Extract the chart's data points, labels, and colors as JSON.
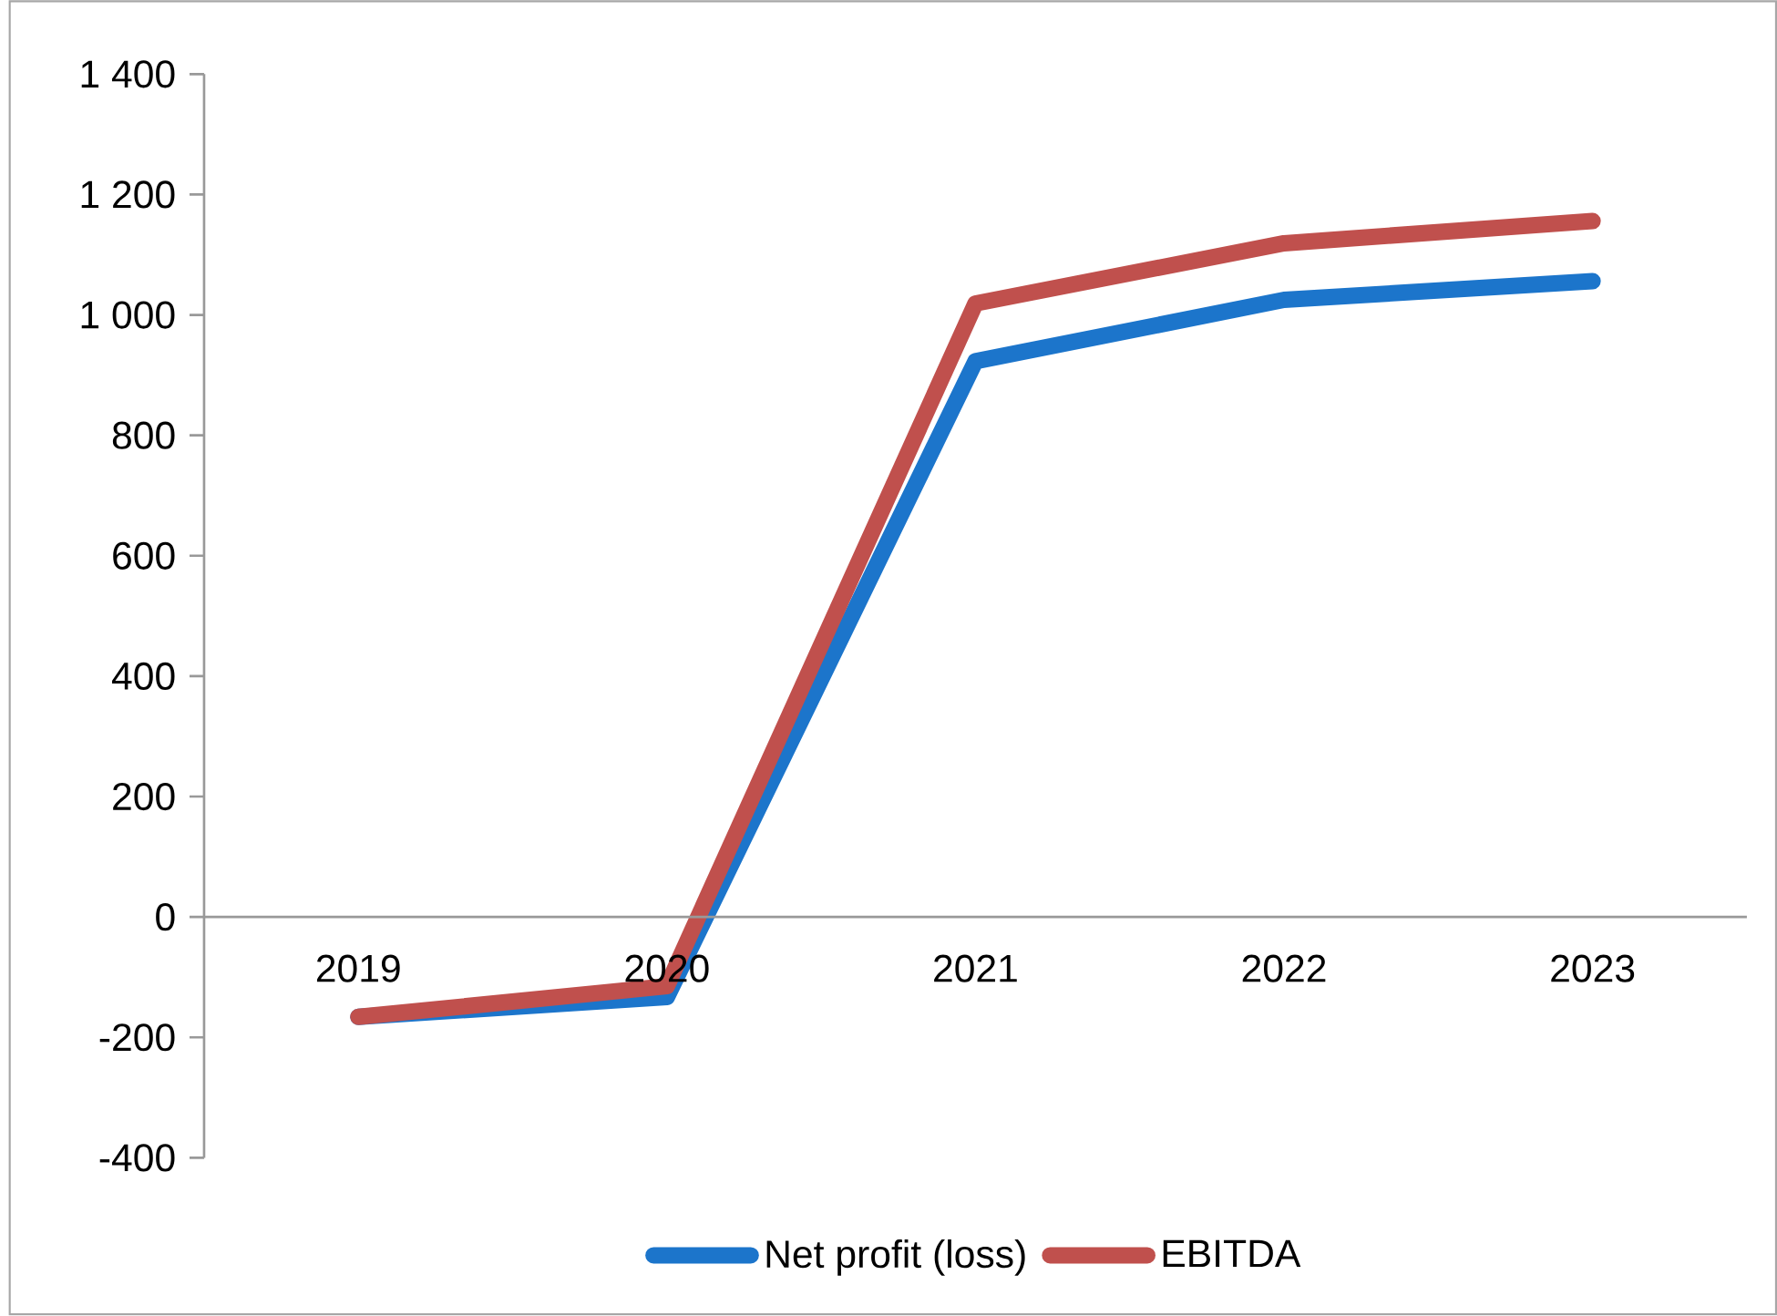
{
  "chart_data": {
    "type": "line",
    "categories": [
      "2019",
      "2020",
      "2021",
      "2022",
      "2023"
    ],
    "series": [
      {
        "name": "Net profit (loss)",
        "color": "#1c75cb",
        "values": [
          -166,
          -133,
          923,
          1025,
          1056
        ]
      },
      {
        "name": "EBITDA",
        "color": "#c0504d",
        "values": [
          -166,
          -115,
          1019,
          1119,
          1156
        ]
      }
    ],
    "ylim": [
      -400,
      1400
    ],
    "yticks": [
      -400,
      -200,
      0,
      200,
      400,
      600,
      800,
      {
        "value": 1000,
        "label": "1 000"
      },
      {
        "value": 1200,
        "label": "1 200"
      },
      {
        "value": 1400,
        "label": "1 400"
      }
    ],
    "grid": false,
    "legend": "bottom",
    "marker": "none",
    "line_style": "solid"
  }
}
